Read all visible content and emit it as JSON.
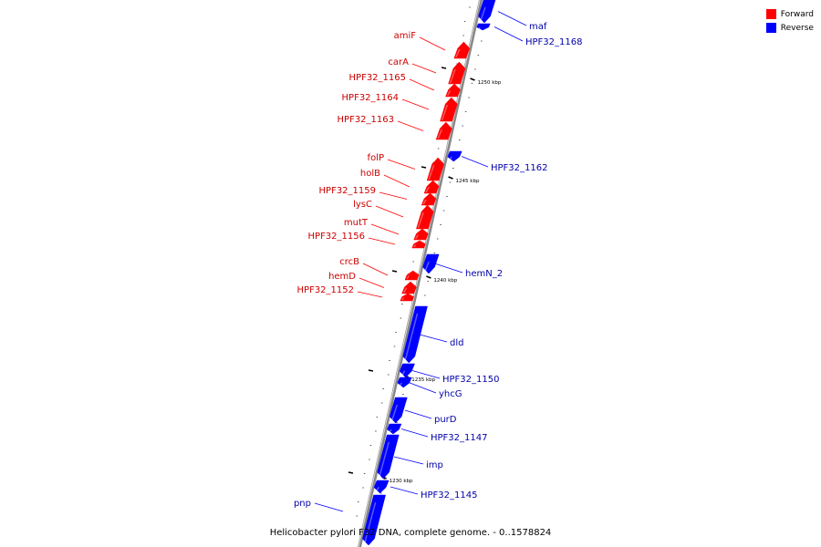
{
  "colors": {
    "forward": "#ff0000",
    "reverse": "#0000ff",
    "backbone": "#888888"
  },
  "legend": {
    "forward_label": "Forward",
    "reverse_label": "Reverse"
  },
  "caption": "Helicobacter pylori F32 DNA, complete genome. - 0..1578824",
  "ticks": [
    {
      "label": "1250 kbp"
    },
    {
      "label": "1245 kbp"
    },
    {
      "label": "1240 kbp"
    },
    {
      "label": "1235 kbp"
    },
    {
      "label": "1230 kbp"
    }
  ],
  "forward_genes": [
    {
      "name": "amiF"
    },
    {
      "name": "carA"
    },
    {
      "name": "HPF32_1165"
    },
    {
      "name": "HPF32_1164"
    },
    {
      "name": "HPF32_1163"
    },
    {
      "name": "folP"
    },
    {
      "name": "holB"
    },
    {
      "name": "HPF32_1159"
    },
    {
      "name": "lysC"
    },
    {
      "name": "mutT"
    },
    {
      "name": "HPF32_1156"
    },
    {
      "name": "crcB"
    },
    {
      "name": "hemD"
    },
    {
      "name": "HPF32_1152"
    }
  ],
  "reverse_genes": [
    {
      "name": "maf"
    },
    {
      "name": "HPF32_1168"
    },
    {
      "name": "HPF32_1162"
    },
    {
      "name": "hemN_2"
    },
    {
      "name": "dld"
    },
    {
      "name": "HPF32_1150"
    },
    {
      "name": "yhcG"
    },
    {
      "name": "purD"
    },
    {
      "name": "HPF32_1147"
    },
    {
      "name": "imp"
    },
    {
      "name": "HPF32_1145"
    },
    {
      "name": "pnp"
    }
  ]
}
